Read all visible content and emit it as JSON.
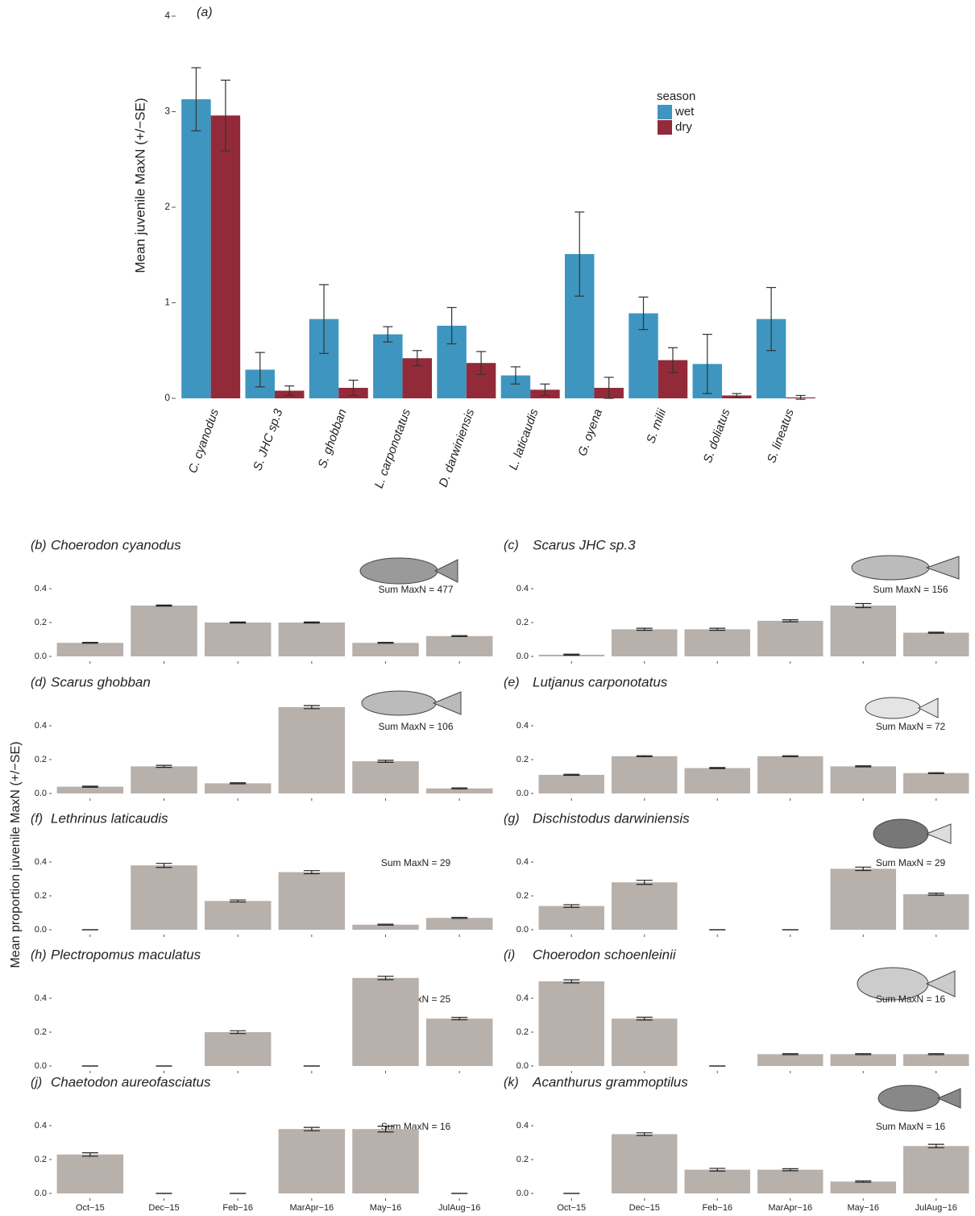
{
  "ylabel": "Mean proportion juvenile MaxN (+/−SE)",
  "chart_data": [
    {
      "type": "grouped-bar",
      "panel": "(a)",
      "ylabel": "Mean juvenile MaxN (+/−SE)",
      "legend_title": "season",
      "legend": "upper right",
      "categories": [
        "C. cyanodus",
        "S. JHC sp.3",
        "S. ghobban",
        "L. carponotatus",
        "D. darwiniensis",
        "L. laticaudis",
        "G. oyena",
        "S. milii",
        "S. doliatus",
        "S. lineatus"
      ],
      "series": [
        {
          "name": "wet",
          "color": "#3e96c0",
          "values": [
            3.13,
            0.3,
            0.83,
            0.67,
            0.76,
            0.24,
            1.51,
            0.89,
            0.36,
            0.83
          ],
          "errors": [
            0.33,
            0.18,
            0.36,
            0.08,
            0.19,
            0.09,
            0.44,
            0.17,
            0.31,
            0.33
          ]
        },
        {
          "name": "dry",
          "color": "#922a3a",
          "values": [
            2.96,
            0.08,
            0.11,
            0.42,
            0.37,
            0.09,
            0.11,
            0.4,
            0.03,
            0.01
          ],
          "errors": [
            0.37,
            0.05,
            0.08,
            0.08,
            0.12,
            0.06,
            0.11,
            0.13,
            0.02,
            0.02
          ]
        }
      ],
      "ylim": [
        0,
        4
      ],
      "yticks": [
        0,
        1,
        2,
        3,
        4
      ]
    },
    {
      "type": "bar",
      "panel": "(b)",
      "title": "Choerodon cyanodus",
      "annotation": "Sum MaxN = 477",
      "color": "#b8b0ab",
      "values": [
        0.08,
        0.3,
        0.2,
        0.2,
        0.08,
        0.12
      ],
      "errors": [
        0.003,
        0.003,
        0.003,
        0.003,
        0.003,
        0.003
      ],
      "ylim": [
        0,
        0.55
      ],
      "yticks": [
        {
          "value": 0,
          "label": "0.0"
        },
        {
          "value": 0.2,
          "label": "0.2"
        },
        {
          "value": 0.4,
          "label": "0.4"
        }
      ]
    },
    {
      "type": "bar",
      "panel": "(c)",
      "title": "Scarus JHC sp.3",
      "annotation": "Sum MaxN = 156",
      "color": "#b8b0ab",
      "values": [
        0.01,
        0.16,
        0.16,
        0.21,
        0.3,
        0.14
      ],
      "errors": [
        0.003,
        0.006,
        0.006,
        0.006,
        0.012,
        0.003
      ],
      "ylim": [
        0,
        0.55
      ],
      "yticks": [
        {
          "value": 0,
          "label": "0.0"
        },
        {
          "value": 0.2,
          "label": "0.2"
        },
        {
          "value": 0.4,
          "label": "0.4"
        }
      ]
    },
    {
      "type": "bar",
      "panel": "(d)",
      "title": "Scarus ghobban",
      "annotation": "Sum MaxN = 106",
      "color": "#b8b0ab",
      "values": [
        0.04,
        0.16,
        0.06,
        0.51,
        0.19,
        0.03
      ],
      "errors": [
        0.003,
        0.006,
        0.003,
        0.009,
        0.006,
        0.003
      ],
      "ylim": [
        0,
        0.55
      ],
      "yticks": [
        {
          "value": 0,
          "label": "0.0"
        },
        {
          "value": 0.2,
          "label": "0.2"
        },
        {
          "value": 0.4,
          "label": "0.4"
        }
      ]
    },
    {
      "type": "bar",
      "panel": "(e)",
      "title": "Lutjanus carponotatus",
      "annotation": "Sum MaxN = 72",
      "color": "#b8b0ab",
      "values": [
        0.11,
        0.22,
        0.15,
        0.22,
        0.16,
        0.12
      ],
      "errors": [
        0.003,
        0.003,
        0.003,
        0.003,
        0.003,
        0.003
      ],
      "ylim": [
        0,
        0.55
      ],
      "yticks": [
        {
          "value": 0,
          "label": "0.0"
        },
        {
          "value": 0.2,
          "label": "0.2"
        },
        {
          "value": 0.4,
          "label": "0.4"
        }
      ]
    },
    {
      "type": "bar",
      "panel": "(f)",
      "title": "Lethrinus laticaudis",
      "annotation": "Sum MaxN = 29",
      "color": "#b8b0ab",
      "values": [
        0,
        0.38,
        0.17,
        0.34,
        0.03,
        0.07
      ],
      "errors": [
        0,
        0.012,
        0.006,
        0.009,
        0.003,
        0.003
      ],
      "ylim": [
        0,
        0.55
      ],
      "yticks": [
        {
          "value": 0,
          "label": "0.0"
        },
        {
          "value": 0.2,
          "label": "0.2"
        },
        {
          "value": 0.4,
          "label": "0.4"
        }
      ]
    },
    {
      "type": "bar",
      "panel": "(g)",
      "title": "Dischistodus darwiniensis",
      "annotation": "Sum MaxN = 29",
      "color": "#b8b0ab",
      "values": [
        0.14,
        0.28,
        0,
        0,
        0.36,
        0.21
      ],
      "errors": [
        0.008,
        0.012,
        0,
        0,
        0.01,
        0.006
      ],
      "ylim": [
        0,
        0.55
      ],
      "yticks": [
        {
          "value": 0,
          "label": "0.0"
        },
        {
          "value": 0.2,
          "label": "0.2"
        },
        {
          "value": 0.4,
          "label": "0.4"
        }
      ]
    },
    {
      "type": "bar",
      "panel": "(h)",
      "title": "Plectropomus maculatus",
      "annotation": "Sum MaxN = 25",
      "color": "#b8b0ab",
      "values": [
        0,
        0,
        0.2,
        0,
        0.52,
        0.28
      ],
      "errors": [
        0,
        0,
        0.008,
        0,
        0.01,
        0.007
      ],
      "ylim": [
        0,
        0.55
      ],
      "yticks": [
        {
          "value": 0,
          "label": "0.0"
        },
        {
          "value": 0.2,
          "label": "0.2"
        },
        {
          "value": 0.4,
          "label": "0.4"
        }
      ]
    },
    {
      "type": "bar",
      "panel": "(i)",
      "title": "Choerodon schoenleinii",
      "annotation": "Sum MaxN = 16",
      "color": "#b8b0ab",
      "values": [
        0.5,
        0.28,
        0,
        0.07,
        0.07,
        0.07
      ],
      "errors": [
        0.009,
        0.008,
        0,
        0.003,
        0.003,
        0.003
      ],
      "ylim": [
        0,
        0.55
      ],
      "yticks": [
        {
          "value": 0,
          "label": "0.0"
        },
        {
          "value": 0.2,
          "label": "0.2"
        },
        {
          "value": 0.4,
          "label": "0.4"
        }
      ]
    },
    {
      "type": "bar",
      "panel": "(j)",
      "title": "Chaetodon aureofasciatus",
      "annotation": "Sum MaxN = 16",
      "color": "#b8b0ab",
      "categories": [
        "Oct−15",
        "Dec−15",
        "Feb−16",
        "MarApr−16",
        "May−16",
        "JulAug−16"
      ],
      "values": [
        0.23,
        0,
        0,
        0.38,
        0.38,
        0
      ],
      "errors": [
        0.01,
        0,
        0,
        0.01,
        0.017,
        0
      ],
      "ylim": [
        0,
        0.55
      ],
      "yticks": [
        {
          "value": 0,
          "label": "0.0"
        },
        {
          "value": 0.2,
          "label": "0.2"
        },
        {
          "value": 0.4,
          "label": "0.4"
        }
      ]
    },
    {
      "type": "bar",
      "panel": "(k)",
      "title": "Acanthurus grammoptilus",
      "annotation": "Sum MaxN = 16",
      "color": "#b8b0ab",
      "categories": [
        "Oct−15",
        "Dec−15",
        "Feb−16",
        "MarApr−16",
        "May−16",
        "JulAug−16"
      ],
      "values": [
        0,
        0.35,
        0.14,
        0.14,
        0.07,
        0.28
      ],
      "errors": [
        0,
        0.008,
        0.008,
        0.006,
        0.004,
        0.01
      ],
      "ylim": [
        0,
        0.55
      ],
      "yticks": [
        {
          "value": 0,
          "label": "0.0"
        },
        {
          "value": 0.2,
          "label": "0.2"
        },
        {
          "value": 0.4,
          "label": "0.4"
        }
      ]
    }
  ]
}
